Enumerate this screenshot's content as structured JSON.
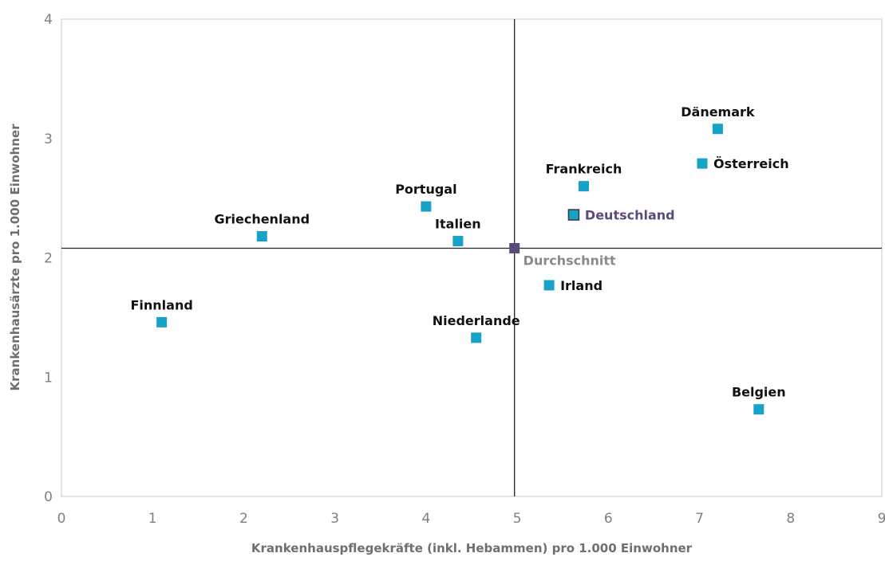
{
  "chart_data": {
    "type": "scatter",
    "xlabel": "Krankenhauspflegekräfte (inkl. Hebammen) pro 1.000 Einwohner",
    "ylabel": "Krankenhausärzte pro 1.000 Einwohner",
    "xlim": [
      0,
      9
    ],
    "ylim": [
      0,
      4
    ],
    "x_ticks": [
      "0",
      "1",
      "2",
      "3",
      "4",
      "5",
      "6",
      "7",
      "8",
      "9"
    ],
    "y_ticks": [
      "0",
      "1",
      "2",
      "3",
      "4"
    ],
    "grid": false,
    "reference_lines": {
      "x": 4.97,
      "y": 2.08
    },
    "points": [
      {
        "label": "Finnland",
        "x": 1.1,
        "y": 1.46,
        "color": "#17a3c7",
        "label_pos": "above"
      },
      {
        "label": "Griechenland",
        "x": 2.2,
        "y": 2.18,
        "color": "#17a3c7",
        "label_pos": "above"
      },
      {
        "label": "Portugal",
        "x": 4.0,
        "y": 2.43,
        "color": "#17a3c7",
        "label_pos": "above"
      },
      {
        "label": "Italien",
        "x": 4.35,
        "y": 2.14,
        "color": "#17a3c7",
        "label_pos": "above"
      },
      {
        "label": "Niederlande",
        "x": 4.55,
        "y": 1.33,
        "color": "#17a3c7",
        "label_pos": "above"
      },
      {
        "label": "Frankreich",
        "x": 5.73,
        "y": 2.6,
        "color": "#17a3c7",
        "label_pos": "above"
      },
      {
        "label": "Deutschland",
        "x": 5.62,
        "y": 2.36,
        "color": "#17a3c7",
        "label_pos": "right",
        "label_color": "#5c4a7d",
        "highlight": true
      },
      {
        "label": "Irland",
        "x": 5.35,
        "y": 1.77,
        "color": "#17a3c7",
        "label_pos": "right"
      },
      {
        "label": "Dänemark",
        "x": 7.2,
        "y": 3.08,
        "color": "#17a3c7",
        "label_pos": "above"
      },
      {
        "label": "Österreich",
        "x": 7.03,
        "y": 2.79,
        "color": "#17a3c7",
        "label_pos": "right"
      },
      {
        "label": "Belgien",
        "x": 7.65,
        "y": 0.73,
        "color": "#17a3c7",
        "label_pos": "above"
      },
      {
        "label": "Durchschnitt",
        "x": 4.97,
        "y": 2.08,
        "color": "#5c4a7d",
        "label_pos": "below-right",
        "label_color": "#8a8a8a"
      }
    ]
  }
}
